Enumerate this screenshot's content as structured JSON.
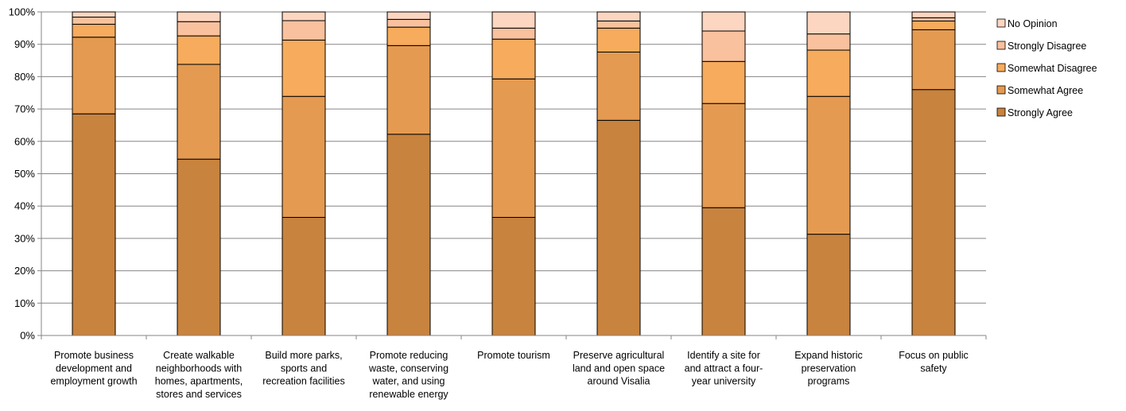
{
  "chart_data": {
    "type": "bar",
    "stacked": true,
    "percent_stacked": true,
    "title": "",
    "xlabel": "",
    "ylabel": "",
    "ylim": [
      0,
      100
    ],
    "yticks": [
      "0%",
      "10%",
      "20%",
      "30%",
      "40%",
      "50%",
      "60%",
      "70%",
      "80%",
      "90%",
      "100%"
    ],
    "grid": true,
    "legend_position": "right",
    "categories": [
      [
        "Promote business",
        "development and",
        "employment growth"
      ],
      [
        "Create walkable",
        "neighborhoods with",
        "homes, apartments,",
        "stores and services"
      ],
      [
        "Build more parks,",
        "sports and",
        "recreation facilities"
      ],
      [
        "Promote reducing",
        "waste, conserving",
        "water, and using",
        "renewable energy"
      ],
      [
        "Promote tourism"
      ],
      [
        "Preserve agricultural",
        "land and open space",
        "around Visalia"
      ],
      [
        "Identify a site for",
        "and attract a four-",
        "year university"
      ],
      [
        "Expand historic",
        "preservation",
        "programs"
      ],
      [
        "Focus on public",
        "safety"
      ]
    ],
    "series": [
      {
        "name": "Strongly Agree",
        "color": "#c8833e",
        "values": [
          68.5,
          54.5,
          36.5,
          62.2,
          36.5,
          66.5,
          39.5,
          31.3,
          76.0
        ]
      },
      {
        "name": "Somewhat Agree",
        "color": "#e49a50",
        "values": [
          23.7,
          29.3,
          37.4,
          27.4,
          42.8,
          21.1,
          32.2,
          42.6,
          18.5
        ]
      },
      {
        "name": "Somewhat Disagree",
        "color": "#f7ab5c",
        "values": [
          4.0,
          8.8,
          17.4,
          5.7,
          12.3,
          7.4,
          13.0,
          14.3,
          2.7
        ]
      },
      {
        "name": "Strongly Disagree",
        "color": "#f9c19d",
        "values": [
          2.2,
          4.4,
          6.0,
          2.4,
          3.4,
          2.2,
          9.4,
          5.0,
          1.0
        ]
      },
      {
        "name": "No Opinion",
        "color": "#fcd6c0",
        "values": [
          1.6,
          3.0,
          2.7,
          2.3,
          5.0,
          2.8,
          5.9,
          6.8,
          1.8
        ]
      }
    ],
    "legend_order": [
      "No Opinion",
      "Strongly Disagree",
      "Somewhat Disagree",
      "Somewhat Agree",
      "Strongly Agree"
    ],
    "gridline_color": "#868686",
    "axis_color": "#868686"
  }
}
